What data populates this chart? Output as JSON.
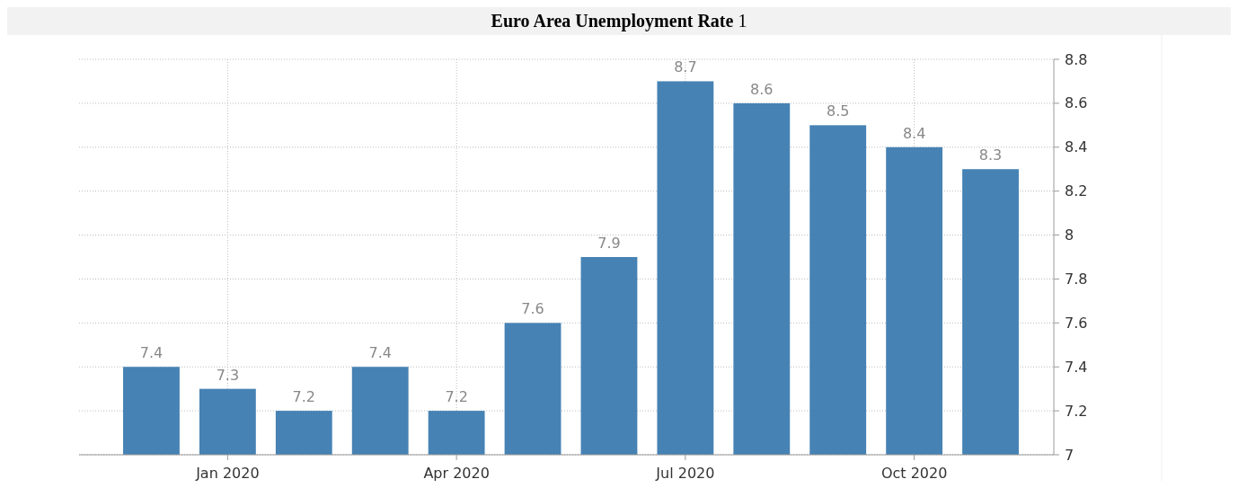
{
  "chart_data": {
    "type": "bar",
    "title": "Euro Area Unemployment Rate 1",
    "categories": [
      null,
      "Jan 2020",
      null,
      null,
      "Apr 2020",
      null,
      null,
      "Jul 2020",
      null,
      null,
      "Oct 2020",
      null
    ],
    "values": [
      7.4,
      7.3,
      7.2,
      7.4,
      7.2,
      7.6,
      7.9,
      8.7,
      8.6,
      8.5,
      8.4,
      8.3
    ],
    "color": "#4682b4",
    "ylim": [
      7,
      8.8
    ],
    "yticks": [
      7,
      7.2,
      7.4,
      7.6,
      7.8,
      8,
      8.2,
      8.4,
      8.6,
      8.8
    ],
    "grid": true,
    "data_labels": true
  }
}
